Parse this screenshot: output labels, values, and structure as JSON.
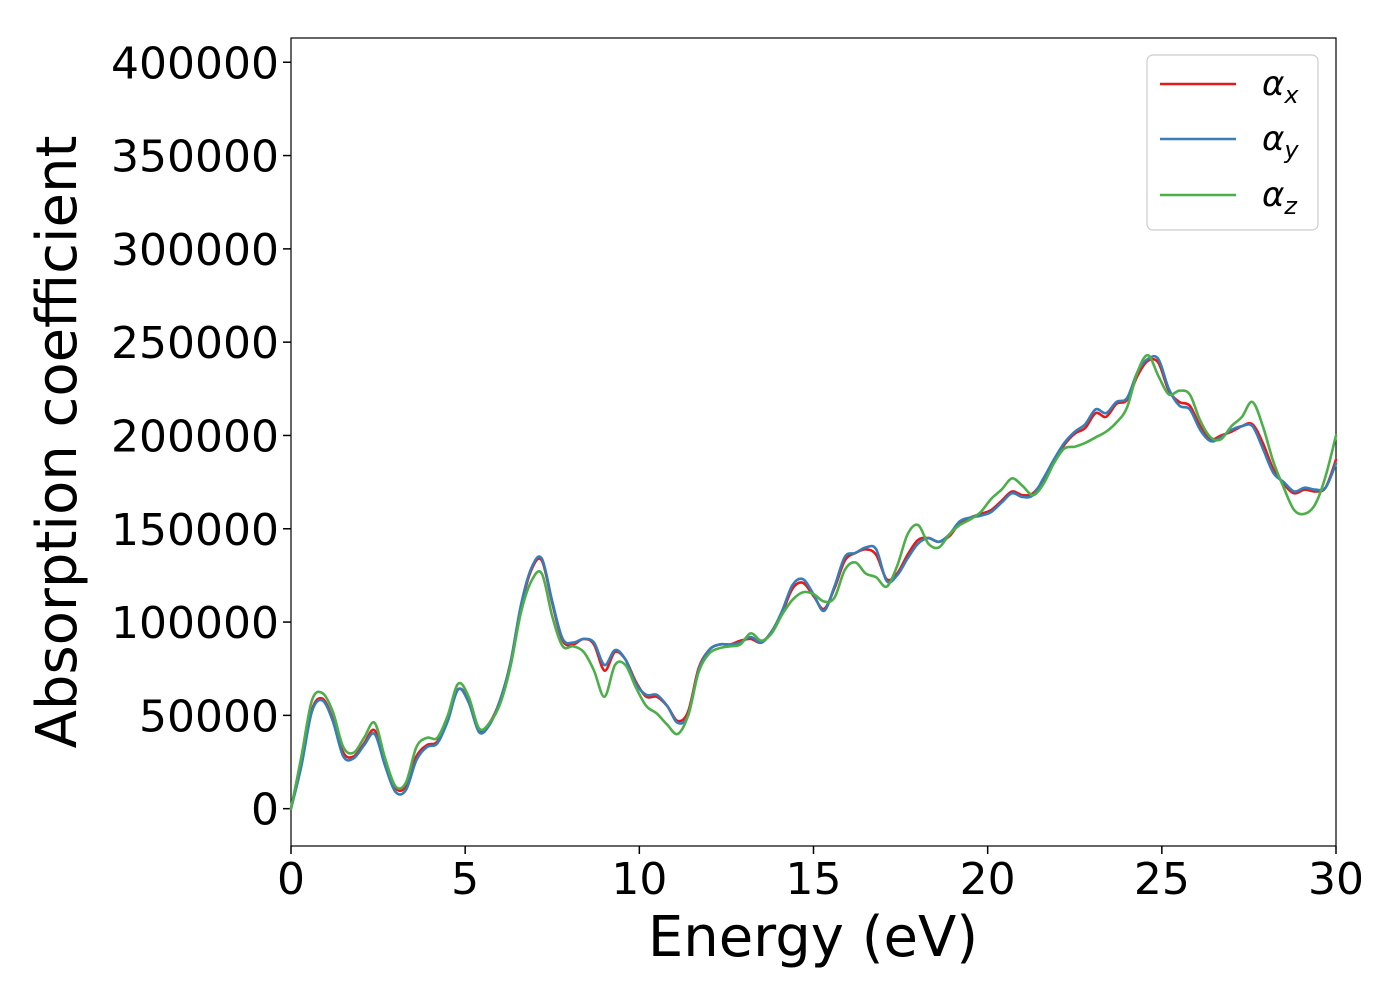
{
  "chart_data": {
    "type": "line",
    "xlabel": "Energy (eV)",
    "ylabel": "Absorption coefficient",
    "xlim": [
      0,
      30
    ],
    "ylim": [
      -20000,
      413000
    ],
    "xticks": [
      0,
      5,
      10,
      15,
      20,
      25,
      30
    ],
    "yticks": [
      0,
      50000,
      100000,
      150000,
      200000,
      250000,
      300000,
      350000,
      400000
    ],
    "legend": "top-right",
    "grid": false,
    "x": [
      0,
      0.3,
      0.6,
      0.9,
      1.2,
      1.5,
      1.8,
      2.1,
      2.4,
      2.7,
      3.0,
      3.3,
      3.6,
      3.9,
      4.2,
      4.5,
      4.8,
      5.1,
      5.4,
      5.7,
      6.0,
      6.3,
      6.6,
      6.9,
      7.2,
      7.5,
      7.8,
      8.1,
      8.4,
      8.7,
      9.0,
      9.3,
      9.6,
      9.9,
      10.2,
      10.5,
      10.8,
      11.1,
      11.4,
      11.7,
      12.0,
      12.3,
      12.6,
      12.9,
      13.2,
      13.5,
      13.8,
      14.1,
      14.4,
      14.7,
      15.0,
      15.3,
      15.6,
      15.9,
      16.2,
      16.5,
      16.8,
      17.1,
      17.4,
      17.7,
      18.0,
      18.3,
      18.6,
      18.9,
      19.2,
      19.5,
      19.8,
      20.1,
      20.4,
      20.7,
      21.0,
      21.3,
      21.6,
      21.9,
      22.2,
      22.5,
      22.8,
      23.1,
      23.4,
      23.7,
      24.0,
      24.3,
      24.6,
      24.9,
      25.2,
      25.5,
      25.8,
      26.1,
      26.4,
      26.7,
      27.0,
      27.3,
      27.6,
      27.9,
      28.2,
      28.5,
      28.8,
      29.1,
      29.4,
      29.7,
      30.0
    ],
    "series": [
      {
        "name": "x",
        "color": "#e41a1c",
        "values": [
          0,
          25000,
          53000,
          59000,
          48000,
          30000,
          28000,
          35000,
          42000,
          25000,
          11000,
          12000,
          28000,
          34000,
          36000,
          48000,
          64000,
          58000,
          42000,
          46000,
          58000,
          78000,
          108000,
          128000,
          133000,
          110000,
          90000,
          88000,
          91000,
          88000,
          74000,
          84000,
          80000,
          68000,
          60000,
          60000,
          55000,
          47000,
          52000,
          75000,
          85000,
          88000,
          88000,
          90000,
          91000,
          89000,
          95000,
          105000,
          118000,
          121000,
          114000,
          107000,
          118000,
          133000,
          137000,
          139000,
          136000,
          123000,
          126000,
          136000,
          144000,
          145000,
          143000,
          146000,
          153000,
          156000,
          158000,
          160000,
          165000,
          170000,
          168000,
          169000,
          176000,
          186000,
          195000,
          201000,
          204000,
          212000,
          210000,
          217000,
          219000,
          232000,
          240000,
          239000,
          224000,
          218000,
          216000,
          205000,
          198000,
          200000,
          202000,
          205000,
          206000,
          196000,
          182000,
          174000,
          169000,
          171000,
          170000,
          172000,
          187000
        ]
      },
      {
        "name": "y",
        "color": "#377eb8",
        "values": [
          0,
          23000,
          52000,
          58000,
          47000,
          28000,
          27000,
          34000,
          40000,
          23000,
          9000,
          10000,
          26000,
          33000,
          35000,
          47000,
          64000,
          57000,
          41000,
          45000,
          58000,
          78000,
          109000,
          129000,
          134000,
          111000,
          91000,
          89000,
          91000,
          89000,
          77000,
          85000,
          80000,
          67000,
          61000,
          61000,
          55000,
          46000,
          50000,
          74000,
          85000,
          88000,
          88000,
          89000,
          92000,
          89000,
          95000,
          106000,
          120000,
          123000,
          115000,
          106000,
          119000,
          135000,
          137000,
          140000,
          139000,
          122000,
          125000,
          134000,
          142000,
          145000,
          143000,
          147000,
          154000,
          156000,
          157000,
          159000,
          164000,
          169000,
          167000,
          168000,
          177000,
          187000,
          196000,
          202000,
          206000,
          214000,
          212000,
          218000,
          220000,
          234000,
          241000,
          241000,
          225000,
          216000,
          214000,
          203000,
          197000,
          199000,
          203000,
          205000,
          205000,
          193000,
          180000,
          175000,
          170000,
          172000,
          171000,
          172000,
          185000
        ]
      },
      {
        "name": "z",
        "color": "#4daf4a",
        "values": [
          0,
          28000,
          58000,
          62000,
          52000,
          33000,
          30000,
          38000,
          46000,
          27000,
          12000,
          14000,
          33000,
          38000,
          38000,
          50000,
          67000,
          60000,
          43000,
          46000,
          56000,
          76000,
          105000,
          122000,
          126000,
          103000,
          87000,
          87000,
          84000,
          74000,
          60000,
          77000,
          77000,
          65000,
          55000,
          51000,
          45000,
          40000,
          50000,
          73000,
          83000,
          86000,
          87000,
          88000,
          94000,
          90000,
          94000,
          104000,
          112000,
          116000,
          115000,
          111000,
          113000,
          128000,
          132000,
          126000,
          124000,
          119000,
          130000,
          147000,
          152000,
          142000,
          140000,
          147000,
          152000,
          155000,
          159000,
          166000,
          171000,
          177000,
          173000,
          168000,
          174000,
          185000,
          193000,
          194000,
          196000,
          199000,
          202000,
          207000,
          215000,
          234000,
          243000,
          232000,
          222000,
          224000,
          222000,
          208000,
          199000,
          198000,
          205000,
          210000,
          218000,
          205000,
          186000,
          172000,
          160000,
          158000,
          163000,
          178000,
          200000
        ]
      }
    ]
  }
}
